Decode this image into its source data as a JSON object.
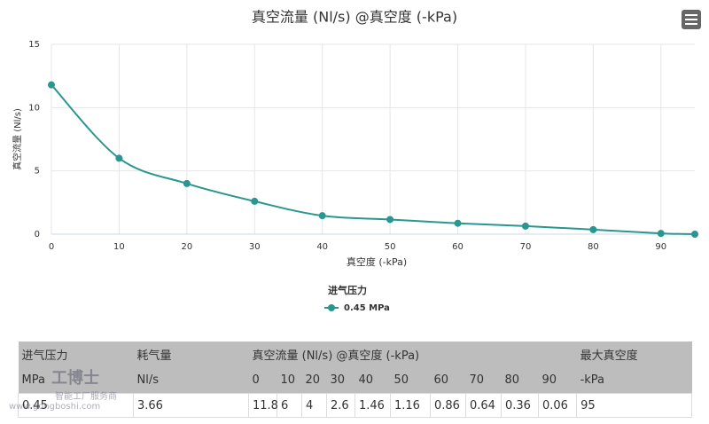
{
  "chart_data": {
    "type": "line",
    "title": "真空流量 (Nl/s) @真空度 (-kPa)",
    "x_label": "真空度 (-kPa)",
    "y_label": "真空流量 (Nl/s)",
    "legend_title": "进气压力",
    "x": [
      0,
      10,
      20,
      30,
      40,
      50,
      60,
      70,
      80,
      90,
      95
    ],
    "series": [
      {
        "name": "0.45 MPa",
        "color": "#2a9690",
        "values": [
          11.8,
          6,
          4,
          2.6,
          1.46,
          1.16,
          0.86,
          0.64,
          0.36,
          0.06,
          0
        ]
      }
    ],
    "xlim": [
      0,
      95
    ],
    "xticks": [
      0,
      10,
      20,
      30,
      40,
      50,
      60,
      70,
      80,
      90
    ],
    "ylim": [
      0,
      15
    ],
    "yticks": [
      0,
      5,
      10,
      15
    ],
    "grid": true
  },
  "table": {
    "header_top": [
      "进气压力",
      "耗气量",
      "真空流量 (Nl/s) @真空度 (-kPa)",
      "最大真空度"
    ],
    "header_units": [
      "MPa",
      "Nl/s",
      "0",
      "10",
      "20",
      "30",
      "40",
      "50",
      "60",
      "70",
      "80",
      "90",
      "-kPa"
    ],
    "rows": [
      [
        "0.45",
        "3.66",
        "11.8",
        "6",
        "4",
        "2.6",
        "1.46",
        "1.16",
        "0.86",
        "0.64",
        "0.36",
        "0.06",
        "95"
      ]
    ]
  },
  "watermark": {
    "brand": "工博士",
    "slogan": "智能工厂服务商",
    "url": "www.gongboshi.com"
  }
}
